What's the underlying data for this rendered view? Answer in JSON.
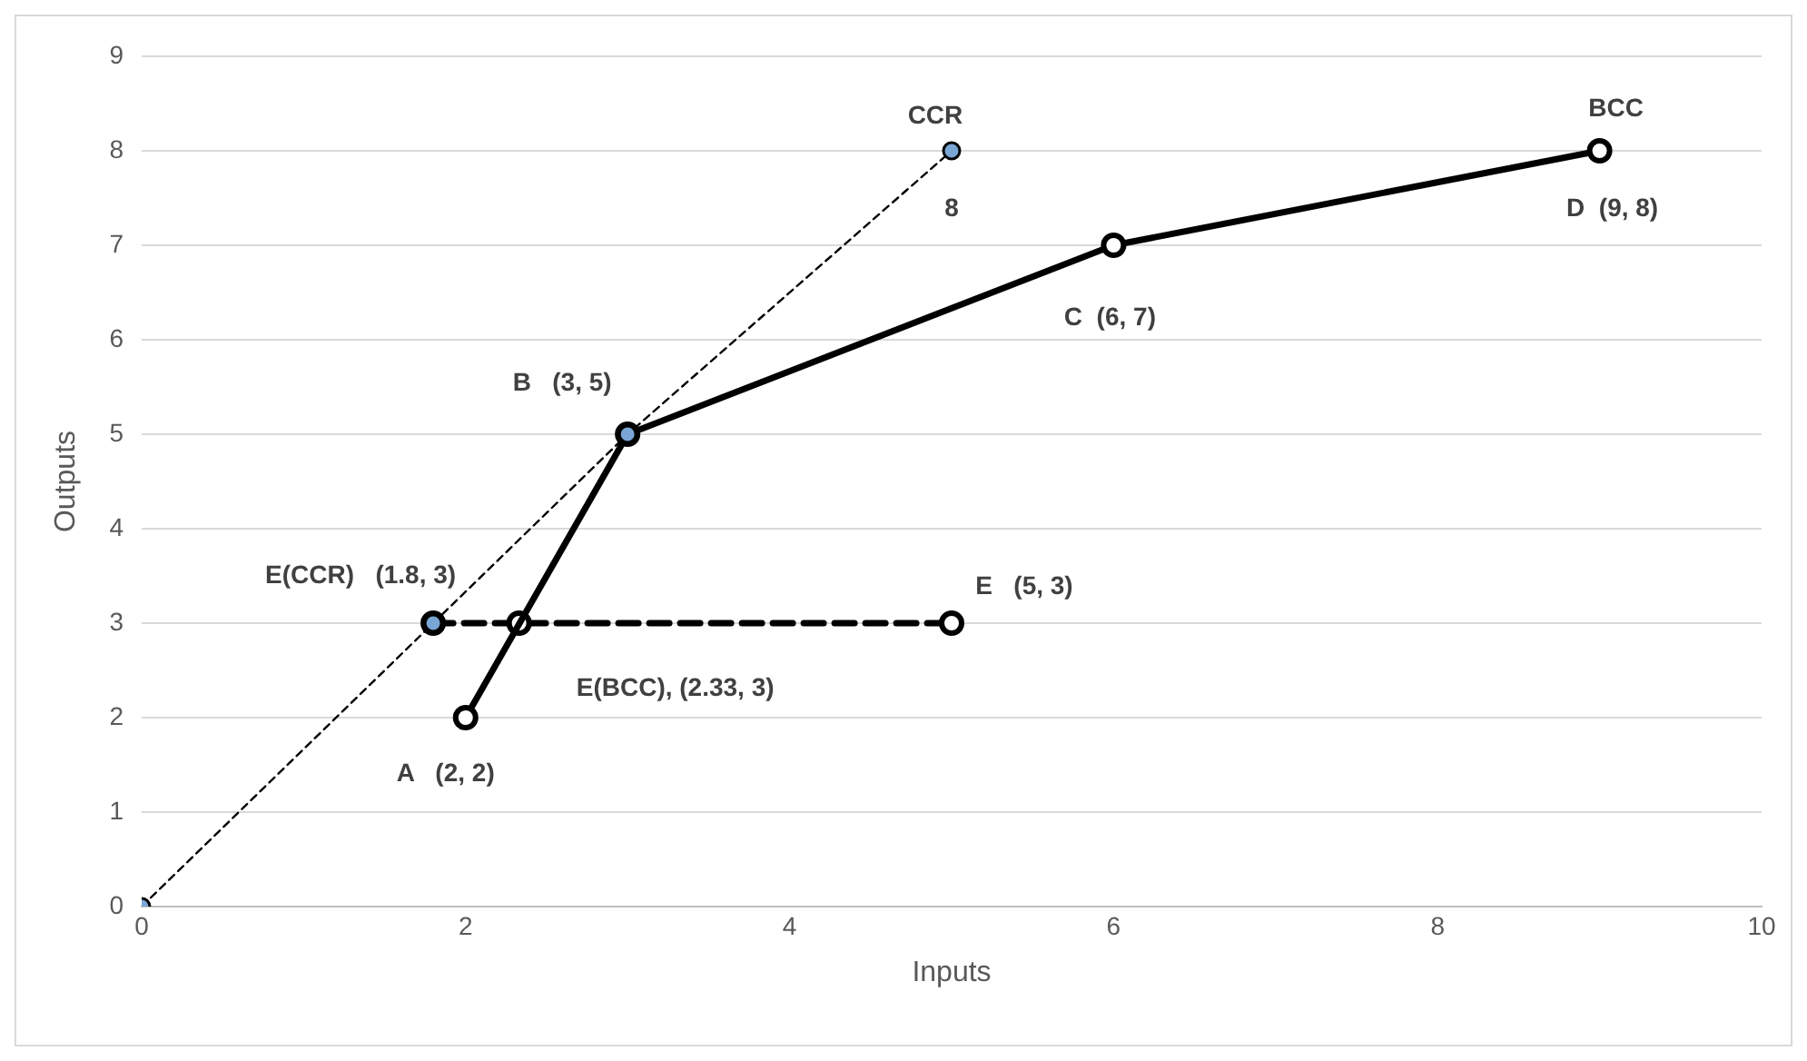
{
  "chart_data": {
    "type": "line",
    "xlabel": "Inputs",
    "ylabel": "Outputs",
    "xlim": [
      0,
      10
    ],
    "xticks": [
      0,
      2,
      4,
      6,
      8,
      10
    ],
    "ylim": [
      0,
      9
    ],
    "yticks": [
      0,
      1,
      2,
      3,
      4,
      5,
      6,
      7,
      8,
      9
    ],
    "grid": "y",
    "legend": false,
    "marker": "circle",
    "series": [
      {
        "name": "CCR",
        "type": "line",
        "color": "#000000",
        "line_style": "dashed",
        "x": [
          0,
          1.8,
          3,
          5
        ],
        "values": [
          0,
          3,
          5,
          8
        ]
      },
      {
        "name": "BCC",
        "type": "line",
        "color": "#000000",
        "line_style": "solid",
        "x": [
          2,
          3,
          6,
          9
        ],
        "values": [
          2,
          5,
          7,
          8
        ]
      },
      {
        "type": "line",
        "color": "#000000",
        "line_style": "dashed",
        "x": [
          1.8,
          2.33,
          5
        ],
        "values": [
          3,
          3,
          3
        ]
      }
    ],
    "annotations": [
      {
        "text": "8",
        "x": 5,
        "y": 8
      },
      {
        "text": "D  (9, 8)",
        "x": 9,
        "y": 8
      },
      {
        "text": "C  (6, 7)",
        "x": 6,
        "y": 7
      },
      {
        "text": "B   (3, 5)",
        "x": 3,
        "y": 5
      },
      {
        "text": "E(CCR)   (1.8, 3)",
        "x": 1.8,
        "y": 3
      },
      {
        "text": "E   (5, 3)",
        "x": 5,
        "y": 3
      },
      {
        "text": "E(BCC), (2.33, 3)",
        "x": 2.33,
        "y": 3
      },
      {
        "text": "A   (2, 2)",
        "x": 2,
        "y": 2
      }
    ]
  }
}
